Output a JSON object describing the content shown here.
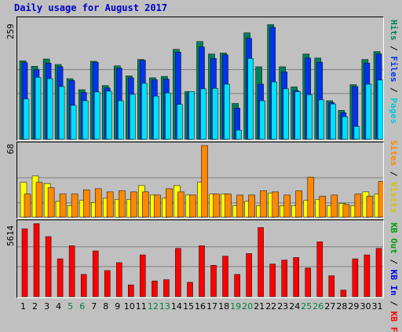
{
  "title": "Daily usage for August 2017",
  "chart_data": [
    {
      "type": "bar",
      "name": "pages-files-hits",
      "categories": [
        "1",
        "2",
        "3",
        "4",
        "5",
        "6",
        "7",
        "8",
        "9",
        "10",
        "11",
        "12",
        "13",
        "14",
        "15",
        "16",
        "17",
        "18",
        "19",
        "20",
        "21",
        "22",
        "23",
        "24",
        "25",
        "26",
        "27",
        "28",
        "29",
        "30",
        "31"
      ],
      "ymax_label": "259",
      "ylim": [
        0,
        259
      ],
      "legend": [
        "Pages",
        "/",
        "Files",
        "/",
        "Hits"
      ],
      "series": [
        {
          "name": "Hits",
          "color": "#00805c",
          "values": [
            171,
            159,
            175,
            163,
            132,
            108,
            170,
            117,
            160,
            138,
            174,
            134,
            137,
            196,
            104,
            213,
            186,
            188,
            78,
            232,
            158,
            250,
            158,
            114,
            186,
            177,
            84,
            63,
            119,
            174,
            191
          ]
        },
        {
          "name": "Files",
          "color": "#0033ee",
          "values": [
            167,
            152,
            166,
            158,
            128,
            102,
            168,
            112,
            155,
            134,
            172,
            130,
            131,
            190,
            100,
            201,
            176,
            184,
            68,
            220,
            120,
            244,
            147,
            106,
            177,
            168,
            80,
            58,
            115,
            166,
            186
          ]
        },
        {
          "name": "Pages",
          "color": "#00e0ff",
          "values": [
            88,
            135,
            132,
            115,
            74,
            84,
            103,
            105,
            84,
            98,
            122,
            94,
            101,
            76,
            104,
            110,
            111,
            120,
            20,
            176,
            84,
            125,
            110,
            104,
            97,
            86,
            77,
            49,
            28,
            120,
            129
          ]
        }
      ]
    },
    {
      "type": "bar",
      "name": "visits-sites",
      "categories": [
        "1",
        "2",
        "3",
        "4",
        "5",
        "6",
        "7",
        "8",
        "9",
        "10",
        "11",
        "12",
        "13",
        "14",
        "15",
        "16",
        "17",
        "18",
        "19",
        "20",
        "21",
        "22",
        "23",
        "24",
        "25",
        "26",
        "27",
        "28",
        "29",
        "30",
        "31"
      ],
      "ymax_label": "68",
      "ylim": [
        0,
        68
      ],
      "legend": [
        "Visits",
        "/",
        "Sites"
      ],
      "series": [
        {
          "name": "Visits",
          "color": "#ffff00",
          "values": [
            33,
            39,
            32,
            15,
            11,
            16,
            14,
            18,
            17,
            17,
            30,
            21,
            18,
            30,
            21,
            33,
            22,
            22,
            11,
            15,
            11,
            23,
            11,
            11,
            16,
            17,
            11,
            13,
            11,
            24,
            22
          ]
        },
        {
          "name": "Sites",
          "color": "#ff8800",
          "values": [
            22,
            33,
            28,
            22,
            22,
            26,
            27,
            24,
            25,
            24,
            24,
            21,
            27,
            24,
            21,
            68,
            22,
            22,
            21,
            21,
            25,
            24,
            21,
            25,
            38,
            20,
            21,
            12,
            22,
            20,
            34
          ]
        }
      ]
    },
    {
      "type": "bar",
      "name": "kbytes",
      "categories": [
        "1",
        "2",
        "3",
        "4",
        "5",
        "6",
        "7",
        "8",
        "9",
        "10",
        "11",
        "12",
        "13",
        "14",
        "15",
        "16",
        "17",
        "18",
        "19",
        "20",
        "21",
        "22",
        "23",
        "24",
        "25",
        "26",
        "27",
        "28",
        "29",
        "30",
        "31"
      ],
      "ymax_label": "5614",
      "ylim": [
        0,
        5614
      ],
      "legend": [
        "KB F",
        "/",
        "KB In",
        "/",
        "KB Out"
      ],
      "series": [
        {
          "name": "KB F",
          "color": "#ff0000",
          "values": [
            5200,
            5600,
            4600,
            2900,
            3900,
            1700,
            3500,
            2000,
            2600,
            900,
            3200,
            1200,
            1300,
            3700,
            1100,
            3900,
            2400,
            3100,
            1700,
            3300,
            5300,
            2500,
            2800,
            3000,
            2200,
            4200,
            1600,
            500,
            2900,
            3200,
            3700
          ]
        }
      ]
    }
  ],
  "x_tick_colors": [
    "#000000",
    "#000000",
    "#000000",
    "#000000",
    "#008040",
    "#008040",
    "#000000",
    "#000000",
    "#000000",
    "#000000",
    "#000000",
    "#008040",
    "#008040",
    "#000000",
    "#000000",
    "#000000",
    "#000000",
    "#000000",
    "#008040",
    "#008040",
    "#000000",
    "#000000",
    "#000000",
    "#000000",
    "#008040",
    "#008040",
    "#000000",
    "#000000",
    "#000000",
    "#000000",
    "#000000"
  ],
  "legend_colors": {
    "Pages": "#00c8e0",
    "Files": "#0033ee",
    "Hits": "#00805c",
    "slash": "#000000",
    "Visits": "#d8c000",
    "Sites": "#ff8800",
    "KB F": "#ff0000",
    "KB In": "#0000ee",
    "KB Out": "#00a000"
  },
  "panel_border_color": "#000000",
  "grid_color": "#808080",
  "background_color": "#c0c0c0"
}
